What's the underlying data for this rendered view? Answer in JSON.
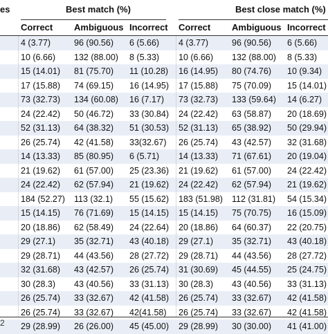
{
  "table": {
    "stub_header": "es",
    "group_headers": [
      "Best match (%)",
      "Best close match (%)"
    ],
    "column_headers": [
      "Correct",
      "Ambiguous",
      "Incorrect",
      "Correct",
      "Ambiguous",
      "Incorrect"
    ],
    "rows": [
      [
        "4 (3.77)",
        "96 (90.56)",
        "6 (5.66)",
        "4 (3.77)",
        "96 (90.56)",
        "6 (5.66)"
      ],
      [
        "10 (6.66)",
        "132 (88.00)",
        "8 (5.33)",
        "10 (6.66)",
        "132 (88.00)",
        "8 (5.33)"
      ],
      [
        "15 (14.01)",
        "81 (75.70)",
        "11 (10.28)",
        "16 (14.95)",
        "80 (74.76)",
        "10 (9.34)"
      ],
      [
        "17 (15.88)",
        "74 (69.15)",
        "16 (14.95)",
        "17 (15.88)",
        "75 (70.09)",
        "15 (14.01)"
      ],
      [
        "73 (32.73)",
        "134 (60.08)",
        "16 (7.17)",
        "73 (32.73)",
        "133 (59.64)",
        "14 (6.27)"
      ],
      [
        "24 (22.42)",
        "50 (46.72)",
        "33 (30.84)",
        "24 (22.42)",
        "63 (58.87)",
        "20 (18.69)"
      ],
      [
        "52 (31.13)",
        "64 (38.32)",
        "51 (30.53)",
        "52 (31.13)",
        "65 (38.92)",
        "50 (29.94)"
      ],
      [
        "26 (25.74)",
        "42 (41.58)",
        "33(32.67)",
        "26 (25.74)",
        "43 (42.57)",
        "32 (31.68)"
      ],
      [
        "14 (13.33)",
        "85 (80.95)",
        "6 (5.71)",
        "14 (13.33)",
        "71 (67.61)",
        "20 (19.04)"
      ],
      [
        "21 (19.62)",
        "61 (57.00)",
        "25 (23.36)",
        "21 (19.62)",
        "61 (57.00)",
        "24 (22.42)"
      ],
      [
        "24 (22.42)",
        "62 (57.94)",
        "21 (19.62)",
        "24 (22.42)",
        "62 (57.94)",
        "21 (19.62)"
      ],
      [
        "184 (52.27)",
        "113 (32.1)",
        "55 (15.62)",
        "183 (51.98)",
        "112 (31.81)",
        "54 (15.34)"
      ],
      [
        "15 (14.15)",
        "76 (71.69)",
        "15 (14.15)",
        "15 (14.15)",
        "75 (70.75)",
        "16 (15.09)"
      ],
      [
        "20 (18.86)",
        "62 (58.49)",
        "24 (22.64)",
        "20 (18.86)",
        "64 (60.37)",
        "22 (20.75)"
      ],
      [
        "29 (27.1)",
        "35 (32.71)",
        "43 (40.18)",
        "29 (27.1)",
        "35 (32.71)",
        "43 (40.18)"
      ],
      [
        "29 (28.71)",
        "44 (43.56)",
        "28 (27.72)",
        "29 (28.71)",
        "44 (43.56)",
        "28 (27.72)"
      ],
      [
        "32 (31.68)",
        "43 (42.57)",
        "26 (25.74)",
        "31 (30.69)",
        "45 (44.55)",
        "25 (24.75)"
      ],
      [
        "30 (28.3)",
        "43 (40.56)",
        "33 (31.13)",
        "30 (28.3)",
        "43 (40.56)",
        "33 (31.13)"
      ],
      [
        "26 (25.74)",
        "33 (32.67)",
        "42 (41.58)",
        "26 (25.74)",
        "33 (32.67)",
        "42 (41.58)"
      ],
      [
        "26 (25.74)",
        "33 (32.67)",
        "42(41.58)",
        "26 (25.74)",
        "33 (32.67)",
        "42 (41.58)"
      ],
      [
        "29 (28.99)",
        "26 (26.00)",
        "45 (45.00)",
        "29 (28.99)",
        "30 (30.00)",
        "41 (41.00)"
      ]
    ]
  },
  "footer_fragment": "2"
}
